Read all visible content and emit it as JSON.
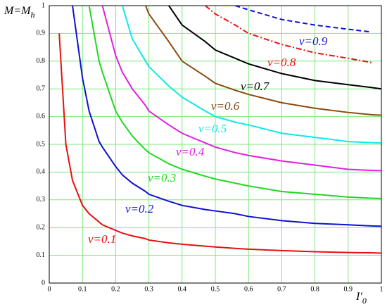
{
  "chart_data": {
    "type": "line",
    "xlabel": [
      "I′",
      "0"
    ],
    "ylabel": [
      "M=M",
      "h"
    ],
    "x": [
      0.03,
      0.05,
      0.07,
      0.1,
      0.12,
      0.15,
      0.16,
      0.2,
      0.22,
      0.25,
      0.29,
      0.3,
      0.36,
      0.4,
      0.47,
      0.5,
      0.56,
      0.6,
      0.7,
      0.8,
      0.9,
      0.97,
      1.0
    ],
    "series": [
      {
        "name": "v=0.1",
        "color": "#e81010",
        "dash": "solid",
        "values": [
          0.9,
          0.5,
          0.37,
          0.28,
          0.25,
          0.22,
          0.21,
          0.19,
          0.18,
          0.17,
          0.16,
          0.155,
          0.145,
          0.14,
          0.133,
          0.13,
          0.125,
          0.122,
          0.117,
          0.113,
          0.11,
          0.109,
          0.108
        ]
      },
      {
        "name": "v=0.2",
        "color": "#1010d0",
        "dash": "solid",
        "values": [
          null,
          null,
          1,
          0.74,
          0.62,
          0.51,
          0.49,
          0.42,
          0.39,
          0.36,
          0.33,
          0.32,
          0.295,
          0.28,
          0.265,
          0.26,
          0.25,
          0.24,
          0.225,
          0.215,
          0.21,
          0.206,
          0.205
        ]
      },
      {
        "name": "v=0.3",
        "color": "#20d820",
        "dash": "solid",
        "values": [
          null,
          null,
          null,
          null,
          1,
          0.8,
          0.76,
          0.62,
          0.58,
          0.53,
          0.48,
          0.47,
          0.43,
          0.41,
          0.385,
          0.375,
          0.36,
          0.35,
          0.33,
          0.32,
          0.31,
          0.306,
          0.305
        ]
      },
      {
        "name": "v=0.4",
        "color": "#e020e0",
        "dash": "solid",
        "values": [
          null,
          null,
          null,
          null,
          null,
          null,
          1,
          0.82,
          0.76,
          0.7,
          0.64,
          0.62,
          0.57,
          0.54,
          0.505,
          0.49,
          0.47,
          0.46,
          0.44,
          0.425,
          0.41,
          0.406,
          0.405
        ]
      },
      {
        "name": "v=0.5",
        "color": "#10e8e8",
        "dash": "solid",
        "values": [
          null,
          null,
          null,
          null,
          null,
          null,
          null,
          null,
          1,
          0.88,
          0.8,
          0.78,
          0.71,
          0.67,
          0.62,
          0.6,
          0.58,
          0.57,
          0.54,
          0.525,
          0.51,
          0.506,
          0.505
        ]
      },
      {
        "name": "v=0.6",
        "color": "#8b4a10",
        "dash": "solid",
        "values": [
          null,
          null,
          null,
          null,
          null,
          null,
          null,
          null,
          null,
          null,
          1,
          0.97,
          0.87,
          0.8,
          0.745,
          0.72,
          0.695,
          0.68,
          0.65,
          0.63,
          0.615,
          0.607,
          0.605
        ]
      },
      {
        "name": "v=0.7",
        "color": "#000000",
        "dash": "solid",
        "values": [
          null,
          null,
          null,
          null,
          null,
          null,
          null,
          null,
          null,
          null,
          null,
          null,
          1,
          0.93,
          0.87,
          0.84,
          0.81,
          0.79,
          0.755,
          0.73,
          0.715,
          0.705,
          0.7
        ]
      },
      {
        "name": "v=0.8",
        "color": "#e81010",
        "dash": "dashdot",
        "values": [
          null,
          null,
          null,
          null,
          null,
          null,
          null,
          null,
          null,
          null,
          null,
          null,
          null,
          null,
          1,
          0.97,
          0.93,
          0.9,
          0.86,
          0.83,
          0.81,
          0.795,
          null
        ]
      },
      {
        "name": "v=0.9",
        "color": "#1010d0",
        "dash": "dashed",
        "values": [
          null,
          null,
          null,
          null,
          null,
          null,
          null,
          null,
          null,
          null,
          null,
          null,
          null,
          null,
          null,
          null,
          1,
          0.985,
          0.95,
          0.93,
          0.915,
          0.905,
          null
        ]
      }
    ],
    "xlim": [
      0,
      1
    ],
    "ylim": [
      0,
      1
    ],
    "xticks": [
      0,
      0.1,
      0.2,
      0.3,
      0.4,
      0.5,
      0.6,
      0.7,
      0.8,
      0.9,
      1
    ],
    "yticks": [
      0,
      0.1,
      0.2,
      0.3,
      0.4,
      0.5,
      0.6,
      0.7,
      0.8,
      0.9,
      1
    ],
    "grid": true
  }
}
